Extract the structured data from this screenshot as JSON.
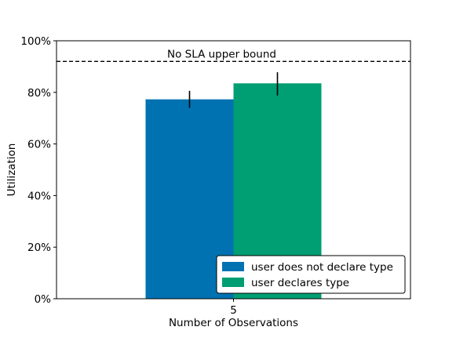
{
  "chart_data": {
    "type": "bar",
    "title": "",
    "xlabel": "Number of Observations",
    "ylabel": "Utilization",
    "categories": [
      "5"
    ],
    "ylim": [
      0,
      1
    ],
    "yticks": [
      0,
      0.2,
      0.4,
      0.6,
      0.8,
      1.0
    ],
    "ytick_labels": [
      "0%",
      "20%",
      "40%",
      "60%",
      "80%",
      "100%"
    ],
    "series": [
      {
        "name": "user does not declare type",
        "color": "#0072b2",
        "values": [
          0.773
        ],
        "error_low": [
          0.74
        ],
        "error_high": [
          0.806
        ]
      },
      {
        "name": "user declares type",
        "color": "#009e73",
        "values": [
          0.835
        ],
        "error_low": [
          0.788
        ],
        "error_high": [
          0.878
        ]
      }
    ],
    "reference_line": {
      "value": 0.92,
      "label": "No SLA upper bound",
      "style": "dashed",
      "color": "#000000"
    },
    "grid": false,
    "legend_position": "lower-right"
  }
}
